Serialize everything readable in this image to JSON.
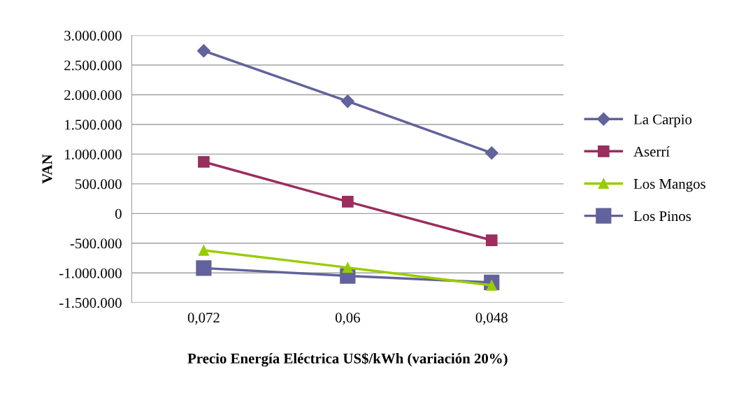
{
  "chart_data": {
    "type": "line",
    "xlabel": "Precio Energía Eléctrica US$/kWh (variación 20%)",
    "ylabel": "VAN",
    "categories": [
      "0,072",
      "0,06",
      "0,048"
    ],
    "series": [
      {
        "name": "La Carpio",
        "color": "#62629c",
        "marker": "diamond",
        "values": [
          2740000,
          1890000,
          1020000
        ]
      },
      {
        "name": "Aserrí",
        "color": "#9b2d5f",
        "marker": "square",
        "values": [
          870000,
          200000,
          -450000
        ]
      },
      {
        "name": "Los Mangos",
        "color": "#99cc00",
        "marker": "triangle",
        "values": [
          -620000,
          -910000,
          -1210000
        ]
      },
      {
        "name": "Los Pinos",
        "color": "#62629c",
        "marker": "square",
        "values": [
          -920000,
          -1050000,
          -1160000
        ]
      }
    ],
    "ylim": [
      -1500000,
      3000000
    ],
    "yticks": [
      {
        "value": -1500000,
        "label": "-1.500.000"
      },
      {
        "value": -1000000,
        "label": "-1.000.000"
      },
      {
        "value": -500000,
        "label": "-500.000"
      },
      {
        "value": 0,
        "label": "0"
      },
      {
        "value": 500000,
        "label": "500.000"
      },
      {
        "value": 1000000,
        "label": "1.000.000"
      },
      {
        "value": 1500000,
        "label": "1.500.000"
      },
      {
        "value": 2000000,
        "label": "2.000.000"
      },
      {
        "value": 2500000,
        "label": "2.500.000"
      },
      {
        "value": 3000000,
        "label": "3.000.000"
      }
    ],
    "grid": "y",
    "legend": "right",
    "line_style": "solid"
  }
}
